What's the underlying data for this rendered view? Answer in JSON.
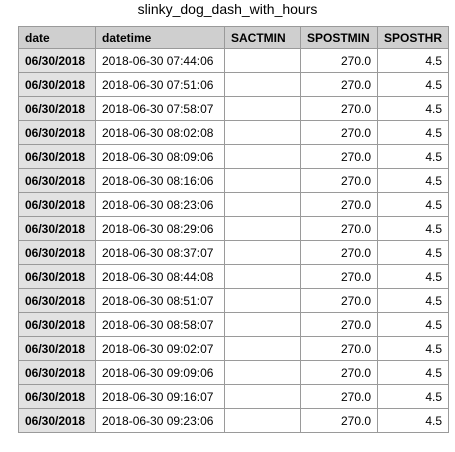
{
  "title": "slinky_dog_dash_with_hours",
  "columns": [
    "date",
    "datetime",
    "SACTMIN",
    "SPOSTMIN",
    "SPOSTHR"
  ],
  "rows": [
    {
      "date": "06/30/2018",
      "datetime": "2018-06-30 07:44:06",
      "sactmin": "",
      "spostmin": "270.0",
      "sposthr": "4.5"
    },
    {
      "date": "06/30/2018",
      "datetime": "2018-06-30 07:51:06",
      "sactmin": "",
      "spostmin": "270.0",
      "sposthr": "4.5"
    },
    {
      "date": "06/30/2018",
      "datetime": "2018-06-30 07:58:07",
      "sactmin": "",
      "spostmin": "270.0",
      "sposthr": "4.5"
    },
    {
      "date": "06/30/2018",
      "datetime": "2018-06-30 08:02:08",
      "sactmin": "",
      "spostmin": "270.0",
      "sposthr": "4.5"
    },
    {
      "date": "06/30/2018",
      "datetime": "2018-06-30 08:09:06",
      "sactmin": "",
      "spostmin": "270.0",
      "sposthr": "4.5"
    },
    {
      "date": "06/30/2018",
      "datetime": "2018-06-30 08:16:06",
      "sactmin": "",
      "spostmin": "270.0",
      "sposthr": "4.5"
    },
    {
      "date": "06/30/2018",
      "datetime": "2018-06-30 08:23:06",
      "sactmin": "",
      "spostmin": "270.0",
      "sposthr": "4.5"
    },
    {
      "date": "06/30/2018",
      "datetime": "2018-06-30 08:29:06",
      "sactmin": "",
      "spostmin": "270.0",
      "sposthr": "4.5"
    },
    {
      "date": "06/30/2018",
      "datetime": "2018-06-30 08:37:07",
      "sactmin": "",
      "spostmin": "270.0",
      "sposthr": "4.5"
    },
    {
      "date": "06/30/2018",
      "datetime": "2018-06-30 08:44:08",
      "sactmin": "",
      "spostmin": "270.0",
      "sposthr": "4.5"
    },
    {
      "date": "06/30/2018",
      "datetime": "2018-06-30 08:51:07",
      "sactmin": "",
      "spostmin": "270.0",
      "sposthr": "4.5"
    },
    {
      "date": "06/30/2018",
      "datetime": "2018-06-30 08:58:07",
      "sactmin": "",
      "spostmin": "270.0",
      "sposthr": "4.5"
    },
    {
      "date": "06/30/2018",
      "datetime": "2018-06-30 09:02:07",
      "sactmin": "",
      "spostmin": "270.0",
      "sposthr": "4.5"
    },
    {
      "date": "06/30/2018",
      "datetime": "2018-06-30 09:09:06",
      "sactmin": "",
      "spostmin": "270.0",
      "sposthr": "4.5"
    },
    {
      "date": "06/30/2018",
      "datetime": "2018-06-30 09:16:07",
      "sactmin": "",
      "spostmin": "270.0",
      "sposthr": "4.5"
    },
    {
      "date": "06/30/2018",
      "datetime": "2018-06-30 09:23:06",
      "sactmin": "",
      "spostmin": "270.0",
      "sposthr": "4.5"
    }
  ]
}
